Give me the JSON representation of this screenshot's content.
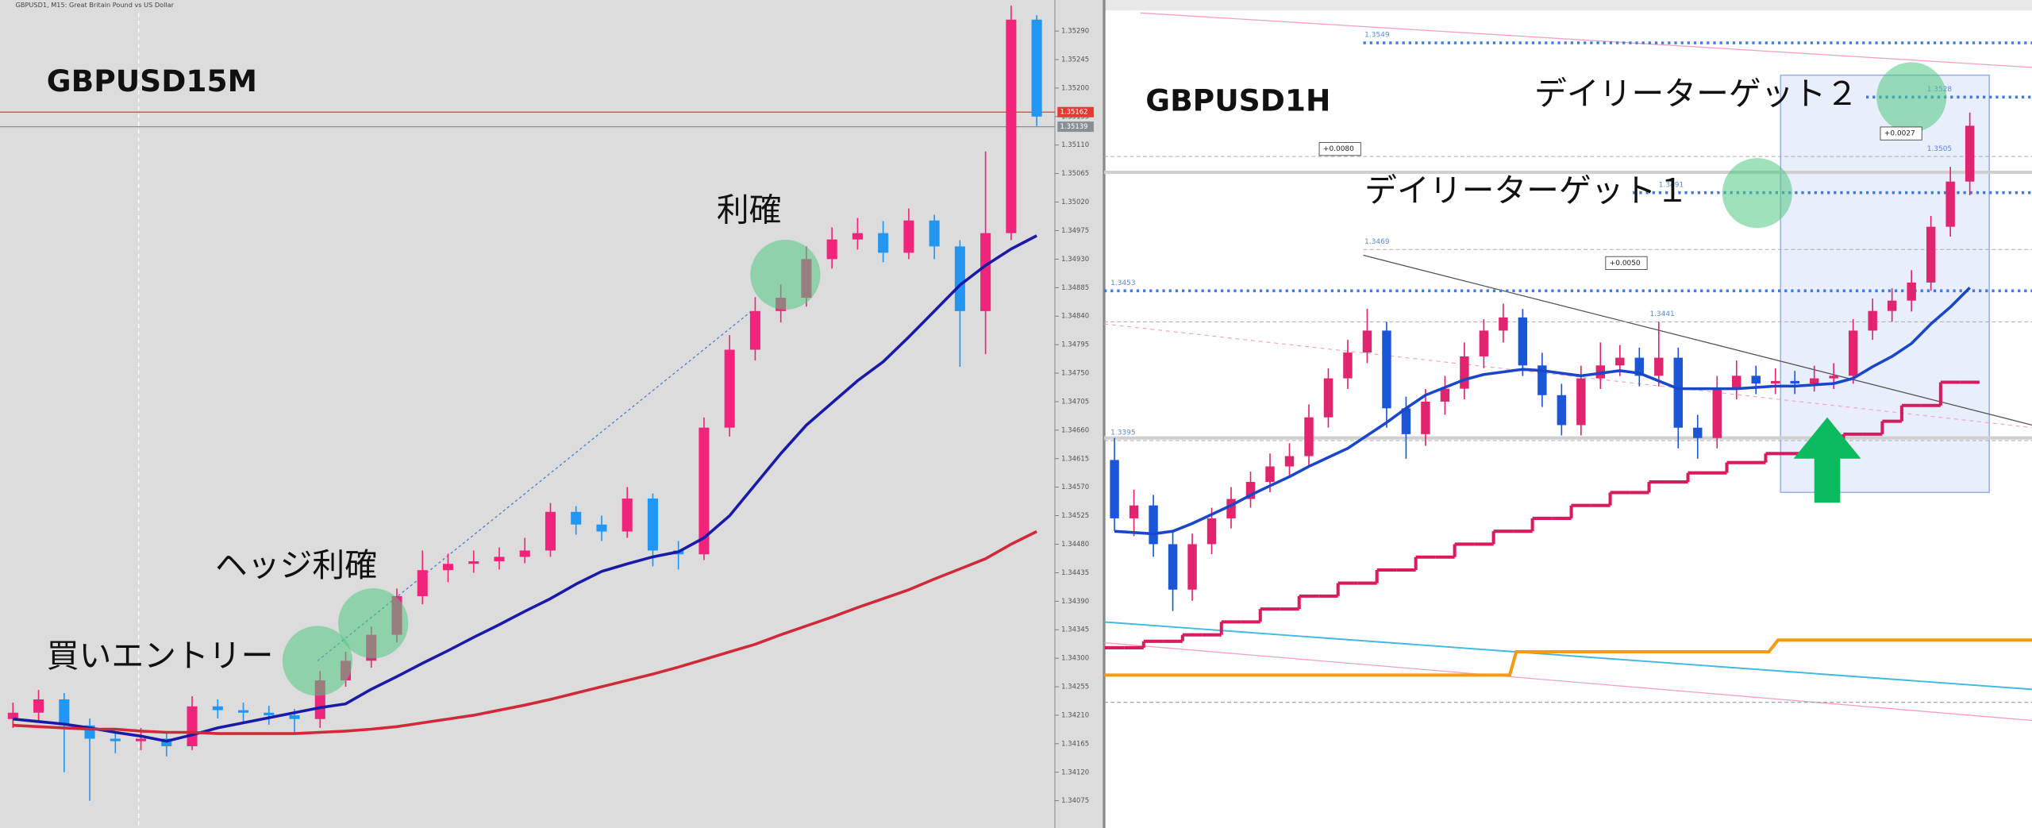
{
  "chart_data": [
    {
      "type": "candlestick",
      "title": "GBPUSD15M",
      "header": "GBPUSD1, M15: Great Britain Pound vs US Dollar",
      "ylim": [
        1.34032,
        1.35339
      ],
      "yticks": [
        1.34075,
        {
          "value": 1.3412,
          "label": "1.34120"
        },
        1.34165,
        {
          "value": 1.3421,
          "label": "1.34210"
        },
        1.34255,
        {
          "value": 1.343,
          "label": "1.34300"
        },
        1.34345,
        {
          "value": 1.3439,
          "label": "1.34390"
        },
        1.34435,
        {
          "value": 1.3448,
          "label": "1.34480"
        },
        1.34525,
        {
          "value": 1.3457,
          "label": "1.34570"
        },
        1.34615,
        {
          "value": 1.3466,
          "label": "1.34660"
        },
        1.34705,
        {
          "value": 1.3475,
          "label": "1.34750"
        },
        1.34795,
        {
          "value": 1.3484,
          "label": "1.34840"
        },
        1.34885,
        {
          "value": 1.3493,
          "label": "1.34930"
        },
        1.34975,
        {
          "value": 1.3502,
          "label": "1.35020"
        },
        1.35065,
        {
          "value": 1.3511,
          "label": "1.35110"
        },
        1.35155,
        {
          "value": 1.352,
          "label": "1.35200"
        },
        1.35245,
        {
          "value": 1.3529,
          "label": "1.35290"
        }
      ],
      "up_color": "#f0247a",
      "down_color": "#2196f3",
      "open": [
        1.34204,
        1.34214,
        1.34235,
        1.34194,
        1.34173,
        1.34169,
        1.34173,
        1.34161,
        1.34224,
        1.34218,
        1.34214,
        1.3421,
        1.34204,
        1.34265,
        1.34296,
        1.34337,
        1.34398,
        1.34439,
        1.34449,
        1.34453,
        1.3446,
        1.3447,
        1.34531,
        1.34511,
        1.345,
        1.34552,
        1.3447,
        1.34464,
        1.34664,
        1.34787,
        1.34848,
        1.34869,
        1.3493,
        1.34961,
        1.34971,
        1.3494,
        1.34991,
        1.3495,
        1.34848,
        1.34971,
        1.35308
      ],
      "high": [
        1.3423,
        1.3425,
        1.34245,
        1.34205,
        1.34185,
        1.3419,
        1.34185,
        1.3424,
        1.34235,
        1.3423,
        1.34225,
        1.3422,
        1.3428,
        1.3431,
        1.3435,
        1.3441,
        1.3447,
        1.34465,
        1.3447,
        1.34475,
        1.3449,
        1.34545,
        1.3454,
        1.34525,
        1.3457,
        1.3456,
        1.34485,
        1.3468,
        1.3481,
        1.3487,
        1.3489,
        1.3495,
        1.3498,
        1.34995,
        1.3499,
        1.3501,
        1.35,
        1.3496,
        1.351,
        1.3533,
        1.35315
      ],
      "low": [
        1.3419,
        1.342,
        1.3412,
        1.34075,
        1.3415,
        1.34155,
        1.34145,
        1.34155,
        1.34205,
        1.342,
        1.34195,
        1.3418,
        1.3419,
        1.34255,
        1.34285,
        1.34325,
        1.34385,
        1.3442,
        1.34435,
        1.3444,
        1.3445,
        1.3446,
        1.34495,
        1.34485,
        1.3449,
        1.34445,
        1.3444,
        1.34455,
        1.3465,
        1.3477,
        1.3483,
        1.34855,
        1.34915,
        1.34945,
        1.34925,
        1.3493,
        1.3493,
        1.3476,
        1.3478,
        1.3496,
        1.3514
      ],
      "close": [
        1.34214,
        1.34235,
        1.34194,
        1.34173,
        1.34169,
        1.34173,
        1.34161,
        1.34224,
        1.34218,
        1.34214,
        1.3421,
        1.34204,
        1.34265,
        1.34296,
        1.34337,
        1.34398,
        1.34439,
        1.34449,
        1.34453,
        1.3446,
        1.3447,
        1.34531,
        1.34511,
        1.345,
        1.34552,
        1.3447,
        1.34464,
        1.34664,
        1.34787,
        1.34848,
        1.34869,
        1.3493,
        1.34961,
        1.34971,
        1.3494,
        1.34991,
        1.3495,
        1.34848,
        1.34971,
        1.35308,
        1.35155
      ],
      "overlays": [
        {
          "color": "#1a1aa8",
          "values": [
            1.34204,
            1.342,
            1.34196,
            1.3419,
            1.34183,
            1.34177,
            1.34169,
            1.34179,
            1.3419,
            1.34198,
            1.34206,
            1.34214,
            1.34222,
            1.34228,
            1.34251,
            1.34271,
            1.34292,
            1.34312,
            1.34333,
            1.34353,
            1.34374,
            1.34394,
            1.34417,
            1.34437,
            1.34449,
            1.3446,
            1.34468,
            1.3449,
            1.34525,
            1.34574,
            1.34623,
            1.34668,
            1.34703,
            1.34738,
            1.34768,
            1.34807,
            1.34848,
            1.34889,
            1.3492,
            1.34946,
            1.34967
          ]
        },
        {
          "color": "#d02a3a",
          "values": [
            1.34194,
            1.34192,
            1.3419,
            1.34188,
            1.34188,
            1.34185,
            1.34183,
            1.34183,
            1.34181,
            1.34181,
            1.34181,
            1.34181,
            1.34183,
            1.34185,
            1.34188,
            1.34192,
            1.34198,
            1.34204,
            1.3421,
            1.34218,
            1.34226,
            1.34235,
            1.34245,
            1.34255,
            1.34265,
            1.34275,
            1.34286,
            1.34298,
            1.3431,
            1.34322,
            1.34337,
            1.34351,
            1.34365,
            1.3438,
            1.34394,
            1.34408,
            1.34425,
            1.34441,
            1.34457,
            1.3448,
            1.345
          ]
        }
      ],
      "price_lines": [
        {
          "value": 1.35162,
          "color": "#e53935"
        },
        {
          "value": 1.35139,
          "color": "#8a8f96"
        }
      ],
      "annotations": [
        "利確",
        "ヘッジ利確",
        "買いエントリー"
      ]
    },
    {
      "type": "candlestick",
      "title": "GBPUSD1H",
      "ylim": [
        1.3245,
        1.35656
      ],
      "up_color": "#e0246e",
      "down_color": "#1a56d6",
      "open": [
        1.33875,
        1.33649,
        1.33699,
        1.33549,
        1.33373,
        1.33549,
        1.33649,
        1.33724,
        1.3379,
        1.3385,
        1.3389,
        1.3404,
        1.34191,
        1.34291,
        1.34376,
        1.34075,
        1.33975,
        1.34101,
        1.34151,
        1.34276,
        1.34376,
        1.34427,
        1.34241,
        1.34126,
        1.3401,
        1.34191,
        1.34241,
        1.34271,
        1.34201,
        1.34271,
        1.34,
        1.3396,
        1.34151,
        1.34201,
        1.34171,
        1.34181,
        1.34171,
        1.34191,
        1.34201,
        1.34376,
        1.34452,
        1.34492,
        1.34562,
        1.34778,
        1.34953
      ],
      "high": [
        1.3396,
        1.3376,
        1.3374,
        1.336,
        1.3359,
        1.3369,
        1.3377,
        1.3383,
        1.339,
        1.3394,
        1.3409,
        1.3423,
        1.3434,
        1.3446,
        1.3441,
        1.3412,
        1.3415,
        1.342,
        1.3433,
        1.3442,
        1.3448,
        1.3446,
        1.3429,
        1.3417,
        1.3424,
        1.3433,
        1.3432,
        1.3431,
        1.3441,
        1.3431,
        1.3405,
        1.342,
        1.3426,
        1.3424,
        1.3423,
        1.3422,
        1.3424,
        1.3425,
        1.3442,
        1.345,
        1.3454,
        1.3461,
        1.3482,
        1.3501,
        1.3522
      ],
      "low": [
        1.336,
        1.3358,
        1.335,
        1.3329,
        1.3333,
        1.3351,
        1.3361,
        1.3369,
        1.3375,
        1.3381,
        1.3385,
        1.34,
        1.3415,
        1.3425,
        1.34,
        1.3388,
        1.3393,
        1.3405,
        1.3411,
        1.3423,
        1.3433,
        1.342,
        1.3408,
        1.3397,
        1.3397,
        1.3415,
        1.342,
        1.3416,
        1.3416,
        1.3392,
        1.3388,
        1.3392,
        1.3411,
        1.3413,
        1.3413,
        1.3413,
        1.3414,
        1.3415,
        1.3417,
        1.3434,
        1.3441,
        1.3445,
        1.3453,
        1.3474,
        1.349
      ],
      "close": [
        1.33649,
        1.33699,
        1.33549,
        1.33373,
        1.33549,
        1.33649,
        1.33724,
        1.3379,
        1.3385,
        1.3389,
        1.3404,
        1.34191,
        1.34291,
        1.34376,
        1.34075,
        1.33975,
        1.34101,
        1.34151,
        1.34276,
        1.34376,
        1.34427,
        1.34241,
        1.34126,
        1.3401,
        1.34191,
        1.34241,
        1.34271,
        1.34201,
        1.34271,
        1.34,
        1.3396,
        1.34151,
        1.34201,
        1.34171,
        1.34181,
        1.34171,
        1.34191,
        1.34201,
        1.34376,
        1.34452,
        1.34492,
        1.34562,
        1.34778,
        1.34953,
        1.35169
      ],
      "overlays": [
        {
          "color": "#1a47c8",
          "values": [
            1.33599,
            1.33594,
            1.33589,
            1.33599,
            1.33629,
            1.33664,
            1.33699,
            1.33739,
            1.33775,
            1.3381,
            1.3385,
            1.33885,
            1.3392,
            1.3397,
            1.3402,
            1.34075,
            1.34126,
            1.34156,
            1.34186,
            1.34206,
            1.34216,
            1.34226,
            1.34221,
            1.34211,
            1.34201,
            1.34211,
            1.34221,
            1.34211,
            1.34181,
            1.34151,
            1.34151,
            1.34151,
            1.34151,
            1.34156,
            1.34161,
            1.34161,
            1.34166,
            1.34171,
            1.34191,
            1.34236,
            1.34276,
            1.34326,
            1.34402,
            1.34467,
            1.34542
          ]
        },
        {
          "color": "#d81b60",
          "step": true,
          "values": [
            1.33148,
            1.33148,
            1.33173,
            1.33173,
            1.33198,
            1.33198,
            1.33248,
            1.33248,
            1.33298,
            1.33298,
            1.33348,
            1.33348,
            1.33398,
            1.33398,
            1.33449,
            1.33449,
            1.33499,
            1.33499,
            1.33549,
            1.33549,
            1.33599,
            1.33599,
            1.33649,
            1.33649,
            1.33699,
            1.33699,
            1.33749,
            1.33749,
            1.3379,
            1.3379,
            1.33825,
            1.33825,
            1.33865,
            1.33865,
            1.339,
            1.339,
            1.33925,
            1.33925,
            1.33975,
            1.33975,
            1.34025,
            1.34086,
            1.34086,
            1.34176,
            1.34176
          ]
        }
      ],
      "levels": [
        1.3549,
        1.3528,
        1.3505,
        1.3491,
        1.3469,
        1.3453,
        1.3441,
        1.3395
      ],
      "deltas": [
        "+0.0080",
        "+0.0050",
        "+0.0027"
      ],
      "annotations": [
        "デイリーターゲット２",
        "デイリーターゲット１"
      ]
    }
  ]
}
